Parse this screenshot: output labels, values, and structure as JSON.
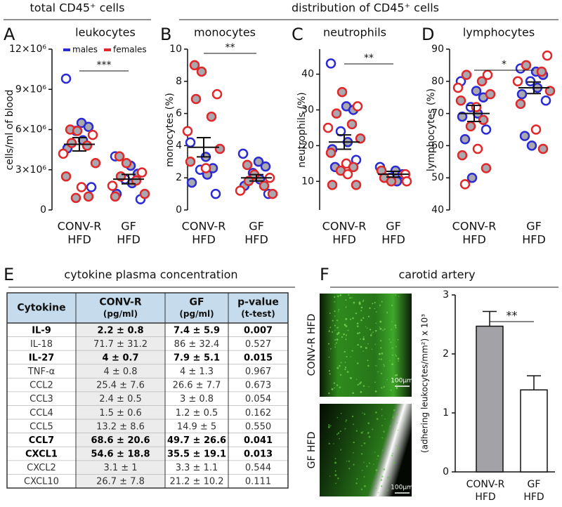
{
  "headers": {
    "total": "total CD45⁺ cells",
    "distribution": "distribution of CD45⁺ cells"
  },
  "chart_data": [
    {
      "type": "dotplot",
      "label": "A",
      "title": "leukocytes",
      "ylabel": "cells/ml of blood",
      "legend": "top",
      "categories": [
        [
          "CONV-R",
          "HFD"
        ],
        [
          "GF",
          "HFD"
        ]
      ],
      "series": [
        {
          "name": "males",
          "color": "#2b2bd6",
          "values": [
            [
              9800000,
              6500000,
              6200000,
              5900000,
              5200000,
              4600000,
              1700000
            ],
            [
              4000000,
              3300000,
              2700000,
              2300000,
              2000000,
              1200000,
              800000
            ]
          ]
        },
        {
          "name": "females",
          "color": "#e0282a",
          "values": [
            [
              6000000,
              5900000,
              5600000,
              5000000,
              4800000,
              4200000,
              3500000,
              2500000,
              1700000,
              1000000,
              900000
            ],
            [
              4000000,
              3500000,
              2800000,
              2500000,
              2200000,
              1800000,
              1200000,
              1000000
            ]
          ]
        }
      ],
      "mean": [
        4900000,
        2300000
      ],
      "sem": [
        500000,
        350000
      ],
      "significance": "***",
      "ylim": [
        0,
        12000000
      ],
      "yticks": [
        0,
        {
          "value": 3000000,
          "label": "3×10⁶"
        },
        {
          "value": 6000000,
          "label": "6×10⁶"
        },
        {
          "value": 9000000,
          "label": "9×10⁶"
        },
        {
          "value": 12000000,
          "label": "12×10⁶"
        }
      ]
    },
    {
      "type": "dotplot",
      "label": "B",
      "title": "monocytes",
      "ylabel": "monocytes (%)",
      "categories": [
        [
          "CONV-R",
          "HFD"
        ],
        [
          "GF",
          "HFD"
        ]
      ],
      "series": [
        {
          "color": "#2b2bd6",
          "values": [
            [
              4.2,
              3.3,
              2.6,
              2.5,
              2.2,
              1.7,
              1.0
            ],
            [
              3.5,
              3.0,
              2.7,
              2.3,
              1.9,
              1.5,
              1.0
            ]
          ]
        },
        {
          "color": "#e0282a",
          "values": [
            [
              9.0,
              8.6,
              7.2,
              6.9,
              5.8,
              4.9,
              3.8,
              3.0,
              2.6
            ],
            [
              2.8,
              2.2,
              2.0,
              1.8,
              1.5,
              1.2,
              1.0
            ]
          ]
        }
      ],
      "mean": [
        3.9,
        2.0
      ],
      "sem": [
        0.6,
        0.2
      ],
      "significance": "**",
      "ylim": [
        0,
        10
      ],
      "yticks": [
        0,
        2,
        4,
        6,
        8,
        10
      ]
    },
    {
      "type": "dotplot",
      "label": "C",
      "title": "neutrophils",
      "ylabel": "neutrophils (%)",
      "categories": [
        [
          "CONV-R",
          "HFD"
        ],
        [
          "GF",
          "HFD"
        ]
      ],
      "series": [
        {
          "color": "#2b2bd6",
          "values": [
            [
              43,
              31,
              30,
              24,
              21,
              19,
              16,
              14
            ],
            [
              14,
              13,
              12,
              11,
              10
            ]
          ]
        },
        {
          "color": "#e0282a",
          "values": [
            [
              35,
              31,
              29,
              26,
              25,
              22,
              18,
              15,
              14,
              13,
              12,
              9,
              9
            ],
            [
              13,
              12,
              11,
              10,
              10
            ]
          ]
        }
      ],
      "mean": [
        21,
        12
      ],
      "sem": [
        2,
        0.8
      ],
      "significance": "**",
      "ylim": [
        2,
        47
      ],
      "yticks": [
        10,
        20,
        30,
        40
      ]
    },
    {
      "type": "dotplot",
      "label": "D",
      "title": "lymphocytes",
      "ylabel": "lymphocytes (%)",
      "categories": [
        [
          "CONV-R",
          "HFD"
        ],
        [
          "GF",
          "HFD"
        ]
      ],
      "series": [
        {
          "color": "#2b2bd6",
          "values": [
            [
              80,
              77,
              75,
              72,
              70,
              69,
              65,
              62,
              50
            ],
            [
              84,
              83,
              82,
              80,
              78,
              76,
              74,
              63,
              60
            ]
          ]
        },
        {
          "color": "#e0282a",
          "values": [
            [
              82,
              82,
              80,
              78,
              76,
              74,
              72,
              68,
              66,
              59,
              57,
              53,
              48
            ],
            [
              88,
              85,
              83,
              80,
              77,
              73,
              65,
              59
            ]
          ]
        }
      ],
      "mean": [
        70,
        78
      ],
      "sem": [
        2.5,
        1.8
      ],
      "significance": "*",
      "ylim": [
        40,
        90
      ],
      "yticks": [
        40,
        50,
        60,
        70,
        80,
        90
      ]
    },
    {
      "type": "bar",
      "ylabel": "(adhering leukocytes/mm²) x 10³",
      "categories": [
        [
          "CONV-R",
          "HFD"
        ],
        [
          "GF",
          "HFD"
        ]
      ],
      "values": [
        2.47,
        1.39
      ],
      "errors": [
        0.25,
        0.24
      ],
      "colors": [
        "#a3a3a7",
        "#ffffff"
      ],
      "significance": "**",
      "ylim": [
        0,
        3
      ],
      "yticks": [
        0,
        1,
        2,
        3
      ]
    }
  ],
  "table": {
    "label": "E",
    "title": "cytokine plasma concentration",
    "header": [
      [
        "Cytokine"
      ],
      [
        "CONV-R",
        "(pg/ml)"
      ],
      [
        "GF",
        "(pg/ml)"
      ],
      [
        "p-value",
        "(t-test)"
      ]
    ],
    "rows": [
      {
        "cells": [
          "IL-9",
          "2.2 ± 0.8",
          "7.4 ± 5.9",
          "0.007"
        ],
        "bold": true
      },
      {
        "cells": [
          "IL-18",
          "71.7 ± 31.2",
          "86 ± 32.4",
          "0.527"
        ],
        "bold": false
      },
      {
        "cells": [
          "IL-27",
          "4 ± 0.7",
          "7.9 ± 5.1",
          "0.015"
        ],
        "bold": true
      },
      {
        "cells": [
          "TNF-α",
          "4 ± 0.8",
          "4 ± 1.3",
          "0.967"
        ],
        "bold": false
      },
      {
        "cells": [
          "CCL2",
          "25.4 ± 7.6",
          "26.6 ± 7.7",
          "0.673"
        ],
        "bold": false
      },
      {
        "cells": [
          "CCL3",
          "2.4 ± 0.5",
          "3 ± 0.8",
          "0.054"
        ],
        "bold": false
      },
      {
        "cells": [
          "CCL4",
          "1.5 ± 0.6",
          "1.2 ± 0.5",
          "0.162"
        ],
        "bold": false
      },
      {
        "cells": [
          "CCL5",
          "13.2 ± 8.6",
          "14.9 ± 5",
          "0.550"
        ],
        "bold": false
      },
      {
        "cells": [
          "CCL7",
          "68.6 ± 20.6",
          "49.7 ± 26.6",
          "0.041"
        ],
        "bold": true
      },
      {
        "cells": [
          "CXCL1",
          "54.6 ± 18.8",
          "35.5 ± 19.1",
          "0.013"
        ],
        "bold": true
      },
      {
        "cells": [
          "CXCL2",
          "3.1 ± 1",
          "3.3 ± 1.1",
          "0.544"
        ],
        "bold": false
      },
      {
        "cells": [
          "CXCL10",
          "26.7 ± 7.8",
          "21.2 ± 10.2",
          "0.111"
        ],
        "bold": false
      }
    ]
  },
  "carotid": {
    "label": "F",
    "title": "carotid artery",
    "images": [
      {
        "label": "CONV-R HFD",
        "scale": "100µm"
      },
      {
        "label": "GF HFD",
        "scale": "100µm"
      }
    ]
  }
}
